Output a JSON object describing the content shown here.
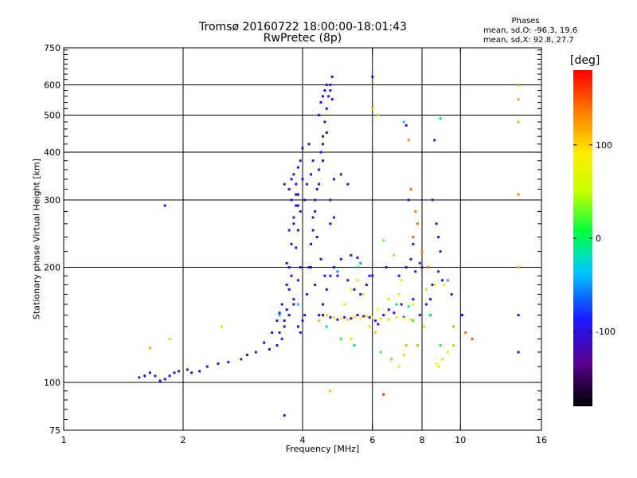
{
  "chart_data": {
    "type": "scatter",
    "title": "Tromsø 20160722 18:00:00-18:01:43",
    "subtitle": "RwPretec (8p)",
    "xlabel": "Frequency [MHz]",
    "ylabel": "Stationary phase Virtual Height [km]",
    "x_scale": "log",
    "y_scale": "log",
    "xlim": [
      1,
      16
    ],
    "ylim": [
      75,
      750
    ],
    "x_ticks": [
      1,
      2,
      4,
      6,
      8,
      10,
      16
    ],
    "y_ticks": [
      75,
      100,
      200,
      300,
      400,
      500,
      600,
      750
    ],
    "grid_x": [
      2,
      4,
      6,
      8,
      10
    ],
    "grid_y": [
      100,
      200,
      300,
      400,
      500,
      600
    ],
    "stats": {
      "heading": "Phases",
      "o_line": "mean, sd,O: -96.3, 19.6",
      "x_line": "mean, sd,X:  92.8, 27.7"
    },
    "colorbar": {
      "label": "[deg]",
      "range": [
        -180,
        180
      ],
      "ticks": [
        100,
        0,
        -100
      ]
    },
    "series": [
      {
        "points": [
          [
            1.55,
            103,
            -110
          ],
          [
            1.6,
            104,
            -100
          ],
          [
            1.65,
            106,
            -95
          ],
          [
            1.7,
            104,
            -105
          ],
          [
            1.75,
            101,
            -110
          ],
          [
            1.8,
            102,
            -100
          ],
          [
            1.85,
            104,
            -90
          ],
          [
            1.9,
            106,
            -95
          ],
          [
            1.95,
            107,
            -100
          ],
          [
            2.05,
            108,
            -105
          ],
          [
            2.1,
            106,
            -110
          ],
          [
            2.2,
            107,
            -95
          ],
          [
            2.3,
            110,
            -100
          ],
          [
            2.45,
            112,
            -105
          ],
          [
            2.6,
            113,
            -95
          ],
          [
            2.8,
            115,
            -100
          ],
          [
            2.9,
            118,
            -110
          ],
          [
            3.05,
            120,
            -100
          ],
          [
            3.2,
            127,
            -95
          ],
          [
            3.35,
            135,
            -100
          ],
          [
            3.45,
            145,
            -110
          ],
          [
            3.5,
            152,
            -90
          ],
          [
            3.55,
            160,
            -100
          ],
          [
            3.6,
            145,
            -105
          ],
          [
            3.65,
            180,
            -95
          ],
          [
            3.7,
            200,
            -100
          ],
          [
            3.75,
            230,
            -110
          ],
          [
            3.8,
            260,
            -90
          ],
          [
            3.85,
            290,
            -100
          ],
          [
            3.9,
            310,
            -105
          ],
          [
            3.95,
            280,
            -95
          ],
          [
            4.0,
            340,
            -100
          ],
          [
            3.7,
            320,
            -95
          ],
          [
            3.8,
            350,
            -110
          ],
          [
            3.9,
            365,
            -100
          ],
          [
            3.75,
            300,
            -95
          ],
          [
            3.6,
            330,
            -100
          ],
          [
            3.85,
            330,
            -105
          ],
          [
            3.9,
            250,
            -100
          ],
          [
            3.95,
            200,
            -95
          ],
          [
            3.7,
            175,
            -100
          ],
          [
            3.8,
            160,
            -105
          ],
          [
            3.9,
            140,
            -95
          ],
          [
            3.95,
            135,
            -100
          ],
          [
            4.0,
            145,
            -110
          ],
          [
            4.05,
            150,
            -100
          ],
          [
            4.1,
            170,
            -95
          ],
          [
            4.15,
            200,
            -100
          ],
          [
            4.2,
            230,
            -105
          ],
          [
            4.25,
            250,
            -95
          ],
          [
            4.3,
            280,
            -100
          ],
          [
            4.35,
            320,
            -110
          ],
          [
            4.4,
            360,
            -100
          ],
          [
            4.45,
            400,
            -95
          ],
          [
            4.5,
            440,
            -100
          ],
          [
            4.55,
            480,
            -105
          ],
          [
            4.6,
            520,
            -95
          ],
          [
            4.65,
            560,
            -100
          ],
          [
            4.7,
            600,
            -110
          ],
          [
            4.75,
            630,
            -100
          ],
          [
            4.6,
            450,
            -95
          ],
          [
            4.5,
            380,
            -100
          ],
          [
            4.4,
            330,
            -105
          ],
          [
            4.3,
            300,
            -95
          ],
          [
            4.25,
            270,
            -100
          ],
          [
            4.35,
            240,
            -110
          ],
          [
            4.45,
            210,
            -100
          ],
          [
            4.55,
            190,
            -95
          ],
          [
            4.6,
            175,
            -100
          ],
          [
            4.5,
            160,
            -105
          ],
          [
            4.4,
            150,
            -95
          ],
          [
            4.3,
            180,
            -100
          ],
          [
            4.2,
            200,
            -110
          ],
          [
            4.7,
            260,
            -100
          ],
          [
            4.8,
            270,
            -95
          ],
          [
            4.7,
            300,
            -100
          ],
          [
            4.4,
            500,
            -105
          ],
          [
            4.45,
            540,
            -95
          ],
          [
            4.55,
            580,
            -100
          ],
          [
            4.5,
            420,
            -110
          ],
          [
            3.65,
            155,
            -100
          ],
          [
            3.55,
            130,
            -95
          ],
          [
            3.45,
            125,
            -100
          ],
          [
            3.3,
            122,
            -105
          ],
          [
            3.75,
            340,
            -95
          ],
          [
            3.85,
            310,
            -100
          ],
          [
            3.9,
            290,
            -110
          ],
          [
            3.8,
            270,
            -100
          ],
          [
            3.7,
            250,
            -95
          ],
          [
            3.95,
            380,
            -100
          ],
          [
            4.0,
            410,
            -105
          ],
          [
            4.05,
            300,
            -95
          ],
          [
            4.1,
            330,
            -100
          ],
          [
            4.2,
            350,
            -110
          ],
          [
            4.25,
            380,
            -100
          ],
          [
            4.15,
            420,
            -95
          ],
          [
            4.8,
            340,
            -100
          ],
          [
            5.0,
            350,
            -105
          ],
          [
            5.2,
            330,
            -95
          ],
          [
            4.6,
            600,
            -100
          ],
          [
            4.7,
            580,
            -110
          ],
          [
            4.75,
            550,
            -100
          ],
          [
            4.5,
            560,
            -95
          ],
          [
            4.5,
            150,
            -100
          ],
          [
            4.7,
            148,
            -105
          ],
          [
            4.9,
            146,
            -95
          ],
          [
            5.1,
            148,
            -100
          ],
          [
            5.3,
            147,
            -110
          ],
          [
            5.5,
            150,
            -100
          ],
          [
            5.7,
            149,
            -95
          ],
          [
            5.9,
            148,
            -100
          ],
          [
            6.1,
            145,
            -105
          ],
          [
            6.2,
            142,
            -95
          ],
          [
            5.6,
            170,
            -100
          ],
          [
            5.8,
            180,
            -110
          ],
          [
            6.0,
            190,
            -100
          ],
          [
            5.4,
            175,
            -95
          ],
          [
            5.2,
            185,
            -100
          ],
          [
            4.9,
            190,
            -105
          ],
          [
            4.7,
            190,
            -95
          ],
          [
            4.8,
            200,
            -100
          ],
          [
            5.0,
            210,
            -110
          ],
          [
            5.3,
            215,
            -100
          ],
          [
            5.5,
            212,
            -95
          ],
          [
            5.9,
            190,
            -100
          ],
          [
            6.5,
            200,
            -105
          ],
          [
            7.0,
            190,
            -95
          ],
          [
            7.3,
            200,
            -100
          ],
          [
            7.5,
            210,
            -110
          ],
          [
            7.7,
            195,
            -100
          ],
          [
            7.9,
            205,
            -95
          ],
          [
            7.6,
            230,
            -100
          ],
          [
            7.4,
            300,
            -105
          ],
          [
            7.3,
            470,
            -95
          ],
          [
            8.0,
            200,
            -100
          ],
          [
            8.5,
            180,
            -110
          ],
          [
            8.8,
            195,
            -100
          ],
          [
            9.0,
            185,
            -95
          ],
          [
            8.6,
            430,
            -100
          ],
          [
            8.5,
            300,
            -105
          ],
          [
            8.7,
            260,
            -95
          ],
          [
            8.8,
            240,
            -100
          ],
          [
            8.9,
            220,
            -110
          ],
          [
            9.5,
            170,
            -100
          ],
          [
            10.1,
            150,
            -95
          ],
          [
            14,
            150,
            -100
          ],
          [
            14,
            120,
            -105
          ],
          [
            8.4,
            165,
            -95
          ],
          [
            6.6,
            155,
            -100
          ],
          [
            7.1,
            160,
            -110
          ],
          [
            7.6,
            165,
            -100
          ],
          [
            6.4,
            150,
            -95
          ],
          [
            6.8,
            152,
            -100
          ],
          [
            7.2,
            148,
            -105
          ],
          [
            7.9,
            150,
            -95
          ],
          [
            8.2,
            160,
            -100
          ],
          [
            1.8,
            290,
            -110
          ],
          [
            3.6,
            82,
            -100
          ],
          [
            6.0,
            630,
            -95
          ],
          [
            3.85,
            225,
            -100
          ],
          [
            3.65,
            205,
            -105
          ],
          [
            3.75,
            190,
            -95
          ],
          [
            3.9,
            185,
            -100
          ],
          [
            3.8,
            165,
            -110
          ],
          [
            3.7,
            150,
            -100
          ],
          [
            3.6,
            140,
            -95
          ],
          [
            3.5,
            135,
            -100
          ]
        ]
      },
      {
        "points": [
          [
            4.8,
            148,
            95
          ],
          [
            5.0,
            147,
            90
          ],
          [
            5.2,
            146,
            100
          ],
          [
            5.4,
            148,
            95
          ],
          [
            5.6,
            147,
            90
          ],
          [
            5.8,
            149,
            100
          ],
          [
            6.0,
            148,
            95
          ],
          [
            6.3,
            147,
            90
          ],
          [
            6.6,
            146,
            100
          ],
          [
            6.9,
            148,
            95
          ],
          [
            7.2,
            147,
            90
          ],
          [
            7.5,
            146,
            100
          ],
          [
            5.1,
            160,
            95
          ],
          [
            5.3,
            175,
            90
          ],
          [
            5.5,
            185,
            100
          ],
          [
            5.7,
            170,
            95
          ],
          [
            6.2,
            155,
            90
          ],
          [
            6.6,
            165,
            100
          ],
          [
            7.0,
            170,
            95
          ],
          [
            7.6,
            160,
            90
          ],
          [
            8.2,
            175,
            100
          ],
          [
            8.6,
            180,
            95
          ],
          [
            9.1,
            180,
            90
          ],
          [
            8.8,
            110,
            100
          ],
          [
            9.0,
            115,
            95
          ],
          [
            9.3,
            120,
            90
          ],
          [
            7.4,
            430,
            135
          ],
          [
            7.5,
            320,
            140
          ],
          [
            7.7,
            280,
            135
          ],
          [
            7.8,
            260,
            140
          ],
          [
            7.6,
            240,
            145
          ],
          [
            8.0,
            220,
            135
          ],
          [
            8.3,
            200,
            140
          ],
          [
            6.0,
            520,
            110
          ],
          [
            6.2,
            500,
            105
          ],
          [
            14,
            600,
            125
          ],
          [
            14,
            550,
            120
          ],
          [
            14,
            480,
            115
          ],
          [
            14,
            310,
            130
          ],
          [
            14,
            200,
            110
          ],
          [
            1.65,
            123,
            115
          ],
          [
            1.85,
            130,
            105
          ],
          [
            2.5,
            140,
            100
          ],
          [
            4.7,
            95,
            110
          ],
          [
            6.4,
            93,
            160
          ],
          [
            6.8,
            215,
            105
          ],
          [
            7.1,
            185,
            100
          ],
          [
            7.3,
            125,
            110
          ],
          [
            7.8,
            125,
            115
          ],
          [
            5.9,
            140,
            100
          ],
          [
            6.1,
            135,
            105
          ],
          [
            5.3,
            130,
            100
          ],
          [
            10.7,
            130,
            150
          ],
          [
            10.3,
            135,
            140
          ],
          [
            9.6,
            140,
            120
          ],
          [
            4.4,
            145,
            110
          ],
          [
            4.6,
            150,
            105
          ],
          [
            7.0,
            110,
            95
          ],
          [
            7.2,
            118,
            100
          ],
          [
            8.7,
            112,
            85
          ]
        ]
      },
      {
        "points": [
          [
            4.6,
            140,
            0
          ],
          [
            5.0,
            130,
            10
          ],
          [
            5.4,
            125,
            -20
          ],
          [
            6.3,
            120,
            20
          ],
          [
            6.7,
            115,
            30
          ],
          [
            7.4,
            158,
            -10
          ],
          [
            8.1,
            140,
            40
          ],
          [
            8.9,
            125,
            10
          ],
          [
            9.3,
            185,
            -40
          ],
          [
            9.6,
            125,
            30
          ],
          [
            7.2,
            480,
            -30
          ],
          [
            8.9,
            490,
            -40
          ],
          [
            6.4,
            235,
            25
          ],
          [
            5.5,
            200,
            -15
          ],
          [
            4.9,
            195,
            -50
          ],
          [
            5.6,
            205,
            -45
          ],
          [
            6.9,
            160,
            -20
          ],
          [
            7.6,
            145,
            15
          ],
          [
            8.4,
            150,
            5
          ],
          [
            3.5,
            150,
            -40
          ],
          [
            3.9,
            160,
            -30
          ]
        ]
      }
    ]
  }
}
